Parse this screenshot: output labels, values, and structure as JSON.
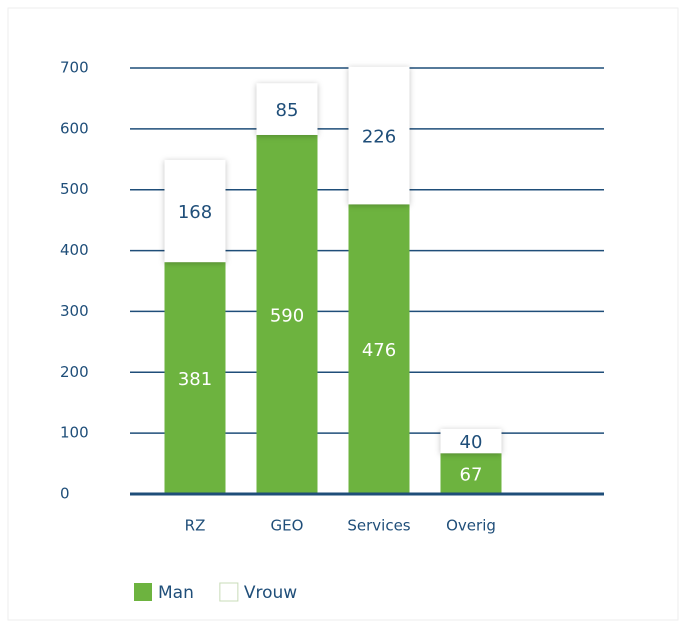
{
  "chart_data": {
    "type": "stacked_bar",
    "categories": [
      "RZ",
      "GEO",
      "Services",
      "Overig"
    ],
    "series": [
      {
        "name": "Man",
        "color": "#6db33f",
        "values": [
          381,
          590,
          476,
          67
        ]
      },
      {
        "name": "Vrouw",
        "color": "#ffffff",
        "values": [
          168,
          85,
          226,
          40
        ]
      }
    ],
    "ylim": [
      0,
      700
    ],
    "yticks": [
      0,
      100,
      200,
      300,
      400,
      500,
      600,
      700
    ],
    "grid": true
  }
}
